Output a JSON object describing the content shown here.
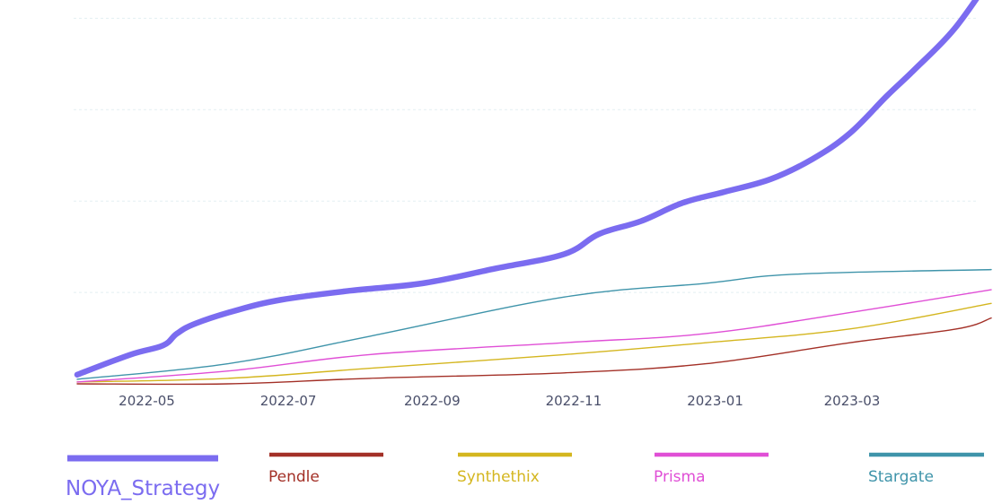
{
  "chart_data": {
    "type": "line",
    "title": "",
    "xlabel": "",
    "ylabel": "",
    "x_ticks": [
      "2022-05",
      "2022-07",
      "2022-09",
      "2022-11",
      "2023-01",
      "2023-03"
    ],
    "xlim": [
      "2022-04-01",
      "2023-04-30"
    ],
    "ylim": [
      0,
      4.2
    ],
    "grid": {
      "y": true,
      "x": false,
      "values": [
        1,
        2,
        3,
        4
      ]
    },
    "legend_position": "bottom",
    "series": [
      {
        "name": "NOYA_Strategy",
        "color": "#7b6cf0",
        "emphasis": "thick",
        "x": [
          "2022-04-01",
          "2022-04-24",
          "2022-05-08",
          "2022-05-14",
          "2022-05-22",
          "2022-06-08",
          "2022-06-28",
          "2022-07-28",
          "2022-08-28",
          "2022-09-28",
          "2022-10-28",
          "2022-11-12",
          "2022-11-30",
          "2022-12-18",
          "2023-01-05",
          "2023-01-25",
          "2023-02-12",
          "2023-02-28",
          "2023-03-16",
          "2023-03-28",
          "2023-04-14",
          "2023-04-30"
        ],
        "values": [
          0.1,
          0.32,
          0.42,
          0.55,
          0.66,
          0.8,
          0.92,
          1.02,
          1.1,
          1.26,
          1.42,
          1.64,
          1.78,
          1.98,
          2.1,
          2.24,
          2.46,
          2.74,
          3.15,
          3.44,
          3.88,
          4.45
        ]
      },
      {
        "name": "Pendle",
        "color": "#a33027",
        "x": [
          "2022-04-01",
          "2022-06-05",
          "2022-08-05",
          "2022-10-28",
          "2022-12-28",
          "2023-02-28",
          "2023-04-15",
          "2023-04-30"
        ],
        "values": [
          0.0,
          0.0,
          0.06,
          0.12,
          0.22,
          0.45,
          0.6,
          0.72
        ]
      },
      {
        "name": "Synthethix",
        "color": "#d4b61f",
        "x": [
          "2022-04-01",
          "2022-06-05",
          "2022-08-05",
          "2022-10-28",
          "2022-12-28",
          "2023-02-28",
          "2023-04-30"
        ],
        "values": [
          0.02,
          0.06,
          0.17,
          0.32,
          0.45,
          0.6,
          0.88
        ]
      },
      {
        "name": "Prisma",
        "color": "#e04fd6",
        "x": [
          "2022-04-01",
          "2022-06-05",
          "2022-08-05",
          "2022-10-28",
          "2022-12-28",
          "2023-02-28",
          "2023-04-30"
        ],
        "values": [
          0.02,
          0.14,
          0.32,
          0.45,
          0.55,
          0.78,
          1.03
        ]
      },
      {
        "name": "Stargate",
        "color": "#3f94aa",
        "x": [
          "2022-04-01",
          "2022-06-05",
          "2022-08-05",
          "2022-10-28",
          "2022-12-28",
          "2023-02-05",
          "2023-04-30"
        ],
        "values": [
          0.05,
          0.22,
          0.52,
          0.95,
          1.1,
          1.2,
          1.25
        ]
      }
    ]
  }
}
